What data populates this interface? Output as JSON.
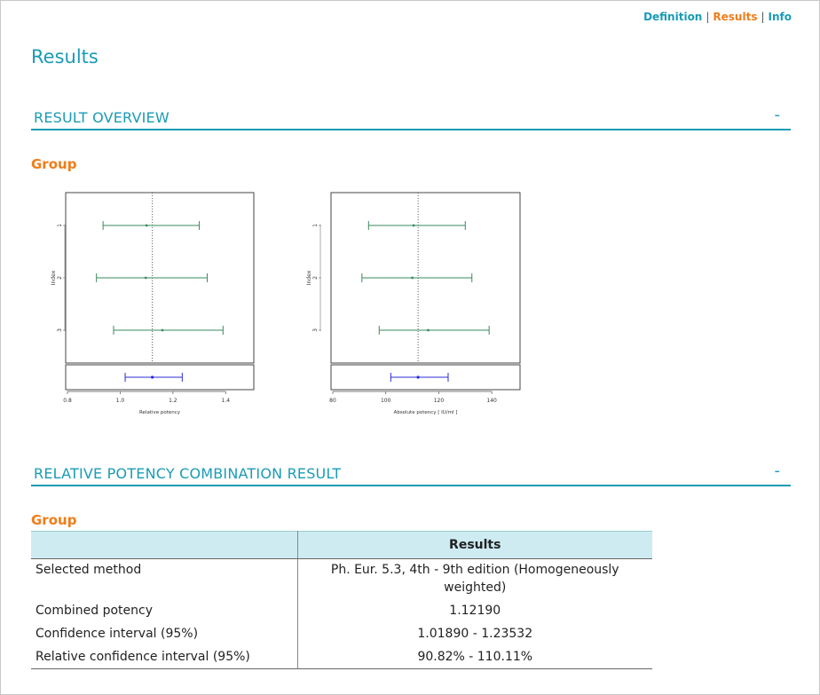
{
  "nav": {
    "definition": "Definition",
    "results": "Results",
    "info": "Info",
    "separator": "|"
  },
  "page_title": "Results",
  "overview": {
    "title": "RESULT OVERVIEW",
    "toggle": "-",
    "group_label": "Group"
  },
  "combination": {
    "title": "RELATIVE POTENCY COMBINATION RESULT",
    "toggle": "-",
    "group_label": "Group",
    "table": {
      "header_left": "",
      "header_right": "Results",
      "rows": [
        {
          "key": "Selected method",
          "value": "Ph. Eur. 5.3, 4th - 9th edition (Homogeneously weighted)"
        },
        {
          "key": "Combined potency",
          "value": "1.12190"
        },
        {
          "key": "Confidence interval (95%)",
          "value": "1.01890 - 1.23532"
        },
        {
          "key": "Relative confidence interval (95%)",
          "value": "90.82% - 110.11%"
        }
      ]
    }
  },
  "colors": {
    "accent": "#1a9bb5",
    "active": "#ef7d1a",
    "series": "#3a8a5c",
    "combined": "#2b2bd6"
  },
  "chart_data": [
    {
      "type": "scatter",
      "title": "",
      "xlabel": "Relative potency",
      "ylabel": "Index",
      "xlim": [
        0.8,
        1.5
      ],
      "xticks": [
        0.8,
        1.0,
        1.2,
        1.4
      ],
      "xtick_labels": [
        "0.8",
        "1.0",
        "1.2",
        "1.4"
      ],
      "reference": 1.1219,
      "series": [
        {
          "index": "1",
          "estimate": 1.1,
          "lower": 0.935,
          "upper": 1.3
        },
        {
          "index": "2",
          "estimate": 1.097,
          "lower": 0.91,
          "upper": 1.33
        },
        {
          "index": "3",
          "estimate": 1.16,
          "lower": 0.975,
          "upper": 1.39
        }
      ],
      "combined": {
        "estimate": 1.1219,
        "lower": 1.0189,
        "upper": 1.23532
      }
    },
    {
      "type": "scatter",
      "title": "",
      "xlabel": "Absolute potency [ IU/ml ]",
      "ylabel": "Index",
      "xlim": [
        80,
        150
      ],
      "xticks": [
        80,
        100,
        120,
        140
      ],
      "xtick_labels": [
        "80",
        "100",
        "120",
        "140"
      ],
      "reference": 112.19,
      "series": [
        {
          "index": "1",
          "estimate": 110.5,
          "lower": 93.5,
          "upper": 130.0
        },
        {
          "index": "2",
          "estimate": 110.0,
          "lower": 91.0,
          "upper": 132.5
        },
        {
          "index": "3",
          "estimate": 116.0,
          "lower": 97.5,
          "upper": 139.0
        }
      ],
      "combined": {
        "estimate": 112.19,
        "lower": 101.89,
        "upper": 123.532
      }
    }
  ]
}
